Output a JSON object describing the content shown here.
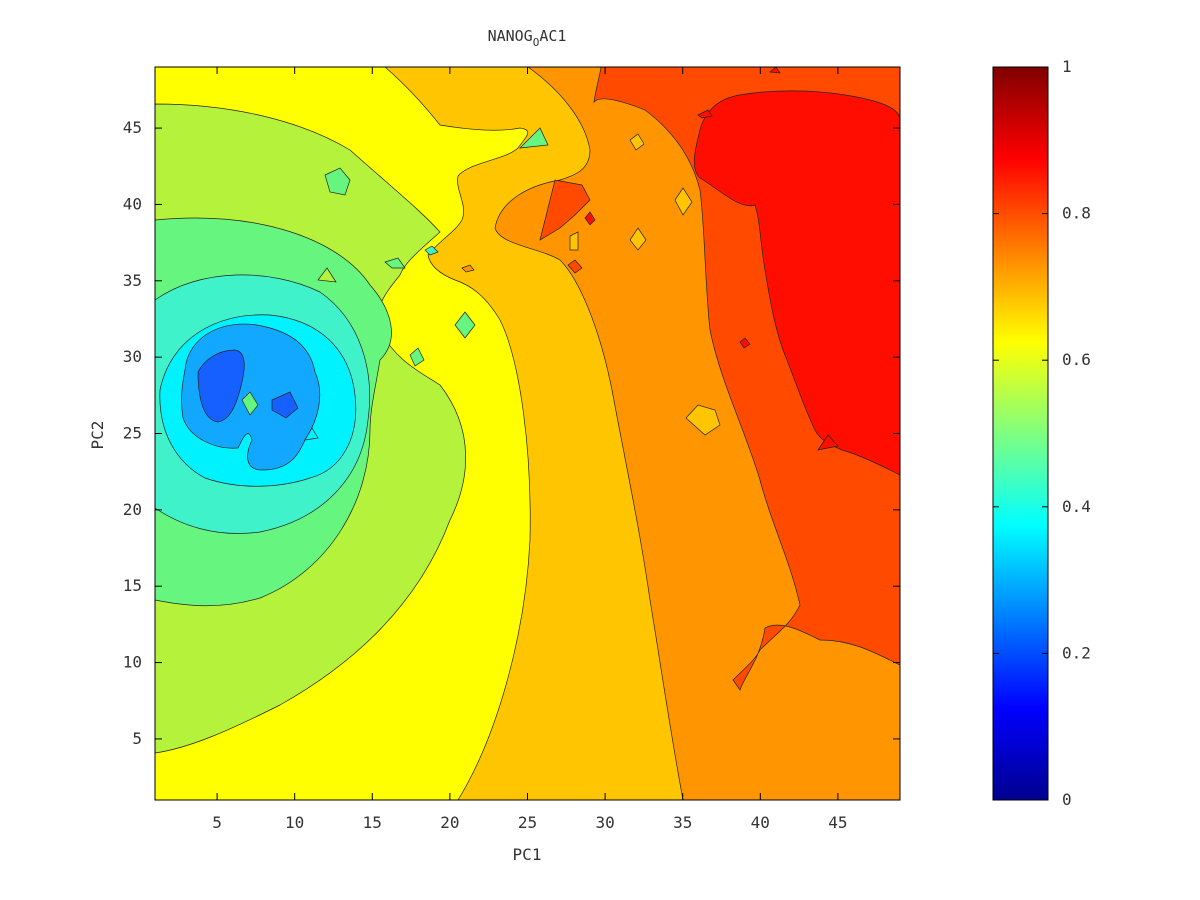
{
  "chart_data": {
    "type": "contour",
    "title_main": "NANOG",
    "title_sub": "O",
    "title_end": "AC1",
    "xlabel": "PC1",
    "ylabel": "PC2",
    "xlim": [
      1,
      49
    ],
    "ylim": [
      1,
      49
    ],
    "xticks": [
      "5",
      "10",
      "15",
      "20",
      "25",
      "30",
      "35",
      "40",
      "45"
    ],
    "xtick_values": [
      5,
      10,
      15,
      20,
      25,
      30,
      35,
      40,
      45
    ],
    "yticks": [
      "5",
      "10",
      "15",
      "20",
      "25",
      "30",
      "35",
      "40",
      "45"
    ],
    "ytick_values": [
      5,
      10,
      15,
      20,
      25,
      30,
      35,
      40,
      45
    ],
    "colorbar": {
      "colormap": "jet",
      "range": [
        0,
        1
      ],
      "ticks": [
        "0",
        "0.2",
        "0.4",
        "0.6",
        "0.8",
        "1"
      ],
      "tick_values": [
        0,
        0.2,
        0.4,
        0.6,
        0.8,
        1
      ]
    },
    "contour_levels": [
      0.2,
      0.3,
      0.4,
      0.5,
      0.6,
      0.7,
      0.8,
      0.9
    ],
    "level_colors": {
      "0.2": "#1560ff",
      "0.3": "#13a8ff",
      "0.35": "#00f2ff",
      "0.4": "#3ff2c9",
      "0.5": "#66f57f",
      "0.55": "#b4f23b",
      "0.6": "#ffff00",
      "0.7": "#ffc600",
      "0.75": "#ff9500",
      "0.8": "#ff4a00",
      "0.9": "#ff0e00"
    },
    "description_regions": [
      {
        "level": 0.2,
        "center": [
          6,
          28
        ]
      },
      {
        "level": 0.35,
        "center": [
          6,
          27
        ]
      },
      {
        "level": 0.55,
        "center": [
          6,
          27
        ]
      },
      {
        "level": 0.7,
        "center": [
          28,
          20
        ]
      },
      {
        "level": 0.8,
        "center": [
          44,
          30
        ]
      },
      {
        "level": 0.9,
        "center": [
          44,
          36
        ]
      }
    ]
  }
}
